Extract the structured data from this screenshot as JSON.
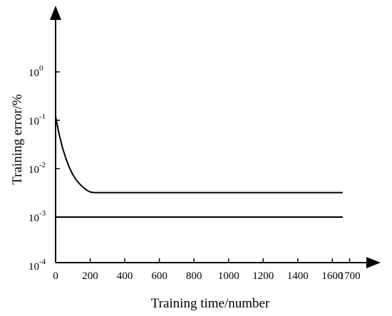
{
  "chart_data": {
    "type": "line",
    "title": "",
    "xlabel": "Training time/number",
    "ylabel": "Training error/%",
    "y_scale": "log",
    "ylim": [
      0.0001,
      10
    ],
    "xlim": [
      0,
      1750
    ],
    "grid": false,
    "legend": "none",
    "x_ticks": [
      {
        "value": 0,
        "label": "0"
      },
      {
        "value": 200,
        "label": "200"
      },
      {
        "value": 400,
        "label": "400"
      },
      {
        "value": 600,
        "label": "600"
      },
      {
        "value": 800,
        "label": "800"
      },
      {
        "value": 1000,
        "label": "1000"
      },
      {
        "value": 1200,
        "label": "1200"
      },
      {
        "value": 1400,
        "label": "1400"
      },
      {
        "value": 1600,
        "label": "1600"
      },
      {
        "value": 1700,
        "label": "1700"
      }
    ],
    "y_ticks": [
      {
        "value": 1,
        "base": "10",
        "exp": "0"
      },
      {
        "value": 0.1,
        "base": "10",
        "exp": "-1"
      },
      {
        "value": 0.01,
        "base": "10",
        "exp": "-2"
      },
      {
        "value": 0.001,
        "base": "10",
        "exp": "-3"
      },
      {
        "value": 0.0001,
        "base": "10",
        "exp": "-4"
      }
    ],
    "series": [
      {
        "x": [
          0,
          20,
          40,
          60,
          80,
          100,
          120,
          140,
          160,
          180,
          200,
          220,
          400,
          800,
          1200,
          1660
        ],
        "y": [
          0.12,
          0.052,
          0.027,
          0.016,
          0.0105,
          0.0075,
          0.0058,
          0.0048,
          0.0041,
          0.0036,
          0.0033,
          0.0032,
          0.0032,
          0.0032,
          0.0032,
          0.0032
        ]
      },
      {
        "x": [
          0,
          1660
        ],
        "y": [
          0.001,
          0.001
        ]
      }
    ]
  }
}
